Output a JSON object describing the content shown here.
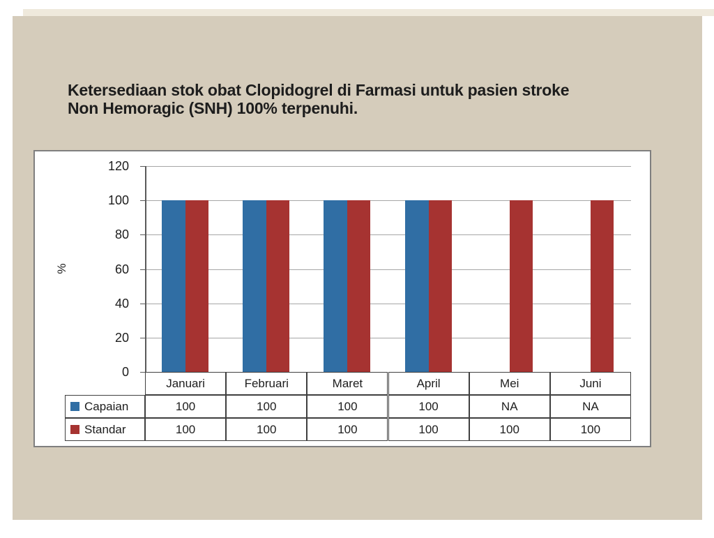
{
  "slide": {
    "title_line1": "Ketersediaan stok obat Clopidogrel di Farmasi untuk pasien stroke",
    "title_line2": "Non Hemoragic (SNH) 100% terpenuhi."
  },
  "colors": {
    "page_bg": "#ffffff",
    "sheet_strip": "#efe9dc",
    "slide_bg": "#d5ccbb",
    "chart_bg": "#ffffff",
    "chart_border": "#7f7f7f",
    "gridline": "#a6a6a6",
    "axis_line": "#595959",
    "table_border": "#3f3f3f",
    "text": "#1d1d1d",
    "capaian_blue": "#306ea4",
    "standar_red": "#a63331"
  },
  "chart_data": {
    "type": "bar",
    "title": "",
    "xlabel": "",
    "ylabel": "%",
    "ylim": [
      0,
      120
    ],
    "yticks": [
      120,
      100,
      80,
      60,
      40,
      20,
      0
    ],
    "grid": true,
    "legend_position": "data-table-left",
    "categories": [
      "Januari",
      "Februari",
      "Maret",
      "April",
      "Mei",
      "Juni"
    ],
    "series": [
      {
        "name": "Capaian",
        "color_key": "capaian_blue",
        "values": [
          100,
          100,
          100,
          100,
          null,
          null
        ],
        "display": [
          "100",
          "100",
          "100",
          "100",
          "NA",
          "NA"
        ]
      },
      {
        "name": "Standar",
        "color_key": "standar_red",
        "values": [
          100,
          100,
          100,
          100,
          100,
          100
        ],
        "display": [
          "100",
          "100",
          "100",
          "100",
          "100",
          "100"
        ]
      }
    ]
  }
}
